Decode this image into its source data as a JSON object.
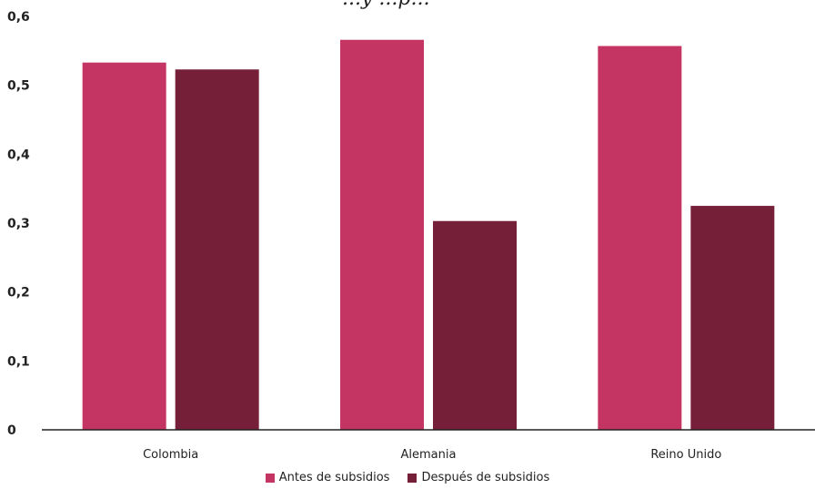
{
  "chart_data": {
    "type": "bar",
    "title": "...y ...p...",
    "categories": [
      "Colombia",
      "Alemania",
      "Reino Unido"
    ],
    "series": [
      {
        "name": "Antes de subsidios",
        "color": "#c43564",
        "values": [
          0.533,
          0.566,
          0.557
        ]
      },
      {
        "name": "Después de subsidios",
        "color": "#761f39",
        "values": [
          0.523,
          0.303,
          0.325
        ]
      }
    ],
    "yticks": [
      "0",
      "0,1",
      "0,2",
      "0,3",
      "0,4",
      "0,5",
      "0,6"
    ],
    "ylim": [
      0,
      0.6
    ],
    "grid": false,
    "legend_position": "bottom"
  }
}
